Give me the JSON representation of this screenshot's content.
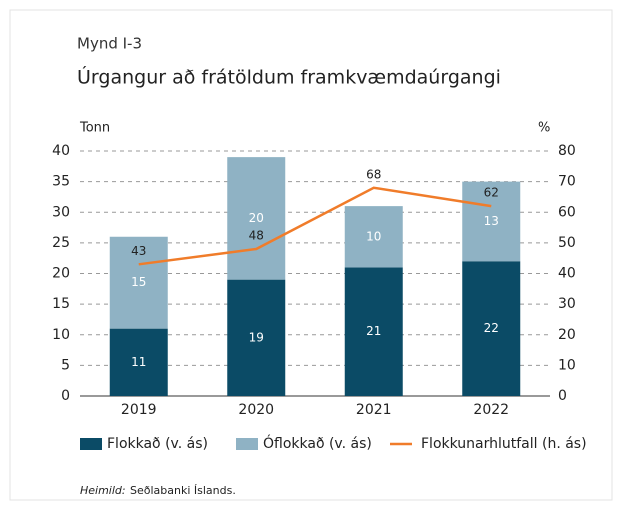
{
  "chart_data": {
    "type": "bar",
    "stacked": true,
    "figure_label": "Mynd I-3",
    "title": "Úrgangur að frátöldum framkvæmdaúrgangi",
    "ylabel": "Tonn",
    "y2label": "%",
    "categories": [
      "2019",
      "2020",
      "2021",
      "2022"
    ],
    "series": [
      {
        "name": "Flokkað (v. ás)",
        "type": "bar",
        "color": "#0b4b66",
        "values": [
          11,
          19,
          21,
          22
        ]
      },
      {
        "name": "Óflokkað (v. ás)",
        "type": "bar",
        "color": "#8fb2c4",
        "values": [
          15,
          20,
          10,
          13
        ]
      },
      {
        "name": "Flokkunarhlutfall (h. ás)",
        "type": "line",
        "axis": "y2",
        "color": "#f07c2a",
        "values": [
          43,
          48,
          68,
          62
        ]
      }
    ],
    "ylim": [
      0,
      40
    ],
    "yticks": [
      0,
      5,
      10,
      15,
      20,
      25,
      30,
      35,
      40
    ],
    "y2lim": [
      0,
      80
    ],
    "y2ticks": [
      0,
      10,
      20,
      30,
      40,
      50,
      60,
      70,
      80
    ],
    "grid": true,
    "legend": "bottom",
    "source_label": "Heimild:",
    "source": "Seðlabanki Íslands."
  }
}
